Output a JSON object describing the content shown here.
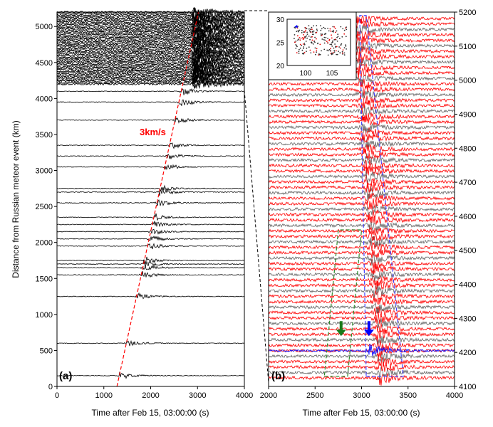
{
  "chart_data": [
    {
      "type": "line",
      "panel_label": "(a)",
      "xlabel": "Time after Feb 15, 03:00:00 (s)",
      "ylabel": "Distance from Russian meteor event (km)",
      "xlim": [
        0,
        4000
      ],
      "ylim": [
        0,
        5200
      ],
      "xticks": [
        "0",
        "1000",
        "2000",
        "3000",
        "4000"
      ],
      "yticks": [
        "0",
        "500",
        "1000",
        "1500",
        "2000",
        "2500",
        "3000",
        "3500",
        "4000",
        "4500",
        "5000"
      ],
      "annotation": {
        "text": "3km/s",
        "velocity_km_s": 3,
        "line_start": [
          1280,
          0
        ],
        "line_end": [
          3020,
          5200
        ],
        "color": "#ff0000"
      },
      "trace_color": "#000000",
      "trace_distances_km": [
        150,
        600,
        1250,
        1550,
        1650,
        1700,
        1750,
        1950,
        2050,
        2150,
        2250,
        2350,
        2550,
        2700,
        2750,
        3050,
        3200,
        3350,
        3700,
        3950,
        4100
      ],
      "dense_band_km": [
        4200,
        5200
      ]
    },
    {
      "type": "line",
      "panel_label": "(b)",
      "xlabel": "Time after Feb 15, 03:00:00 (s)",
      "xlim": [
        2000,
        4000
      ],
      "ylim": [
        4100,
        5200
      ],
      "xticks": [
        "2000",
        "2500",
        "3000",
        "3500",
        "4000"
      ],
      "yticks": [
        "4100",
        "4200",
        "4300",
        "4400",
        "4500",
        "4600",
        "4700",
        "4800",
        "4900",
        "5000",
        "5100",
        "5200"
      ],
      "trace_colors": [
        "#ff0000",
        "#666666",
        "#0000ff"
      ],
      "highlight_trace_km": 4205,
      "arrows": [
        {
          "color": "#1a7a1a",
          "time_s": 2780,
          "distance_km": 4250
        },
        {
          "color": "#0000ff",
          "time_s": 3080,
          "distance_km": 4250
        }
      ],
      "boxes": [
        {
          "color": "#2e8b2e",
          "corners": [
            [
              2600,
              4130
            ],
            [
              2850,
              4130
            ],
            [
              3000,
              4560
            ],
            [
              2750,
              4560
            ]
          ]
        },
        {
          "color": "#4444ff",
          "corners": [
            [
              3050,
              4130
            ],
            [
              3450,
              4130
            ],
            [
              3050,
              5190
            ],
            [
              2980,
              5190
            ]
          ]
        }
      ],
      "inset": {
        "xticks": [
          "100",
          "105"
        ],
        "yticks": [
          "20",
          "25",
          "30"
        ],
        "xlim": [
          96.5,
          108.5
        ],
        "ylim": [
          20,
          30
        ]
      }
    }
  ]
}
